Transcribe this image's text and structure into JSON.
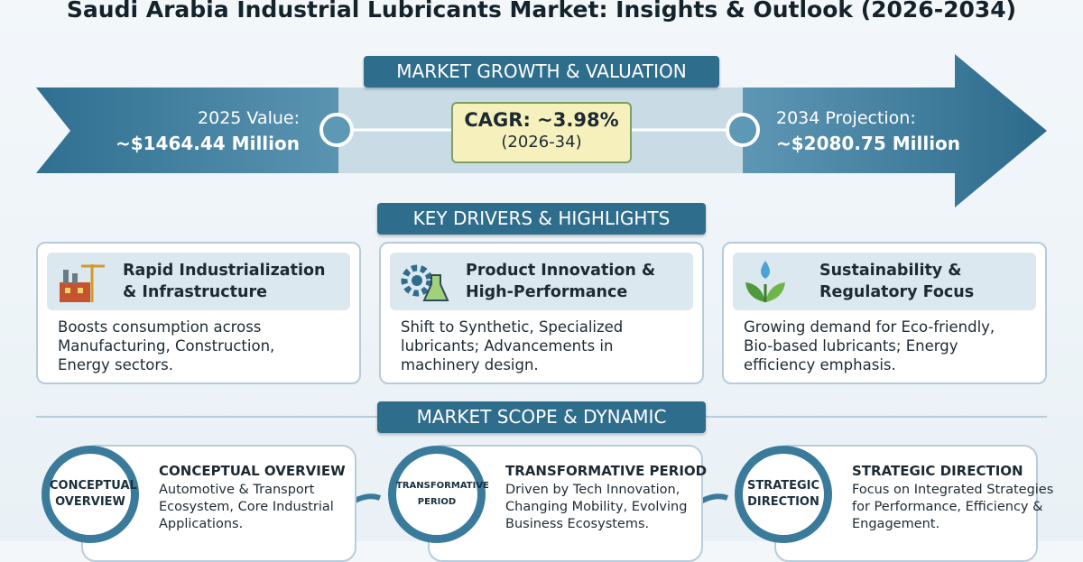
{
  "title": "Saudi Arabia Industrial Lubricants Market: Insights & Outlook (2026-2034)",
  "growth": {
    "heading": "MARKET GROWTH & VALUATION",
    "start_label": "2025 Value:",
    "start_value": "~$1464.44 Million",
    "cagr": "CAGR: ~3.98%",
    "cagr_period": "(2026-34)",
    "end_label": "2034 Projection:",
    "end_value": "~$2080.75 Million"
  },
  "drivers": {
    "heading": "KEY DRIVERS & HIGHLIGHTS",
    "cards": [
      {
        "title": [
          "Rapid Industrialization",
          "& Infrastructure"
        ],
        "body": [
          "Boosts consumption across",
          "Manufacturing, Construction,",
          "Energy sectors."
        ]
      },
      {
        "title": [
          "Product Innovation &",
          "High-Performance"
        ],
        "body": [
          "Shift to Synthetic, Specialized",
          "lubricants; Advancements in",
          "machinery design."
        ]
      },
      {
        "title": [
          "Sustainability &",
          "Regulatory Focus"
        ],
        "body": [
          "Growing demand for Eco-friendly,",
          "Bio-based lubricants; Energy",
          "efficiency emphasis."
        ]
      }
    ]
  },
  "scope": {
    "heading": "MARKET SCOPE & DYNAMIC",
    "items": [
      {
        "badge": [
          "CONCEPTUAL",
          "OVERVIEW"
        ],
        "title": "CONCEPTUAL OVERVIEW",
        "body": [
          "Automotive & Transport",
          "Ecosystem, Core Industrial",
          "Applications."
        ]
      },
      {
        "badge": [
          "TRANSFORMATIVE",
          "PERIOD"
        ],
        "title": "TRANSFORMATIVE PERIOD",
        "body": [
          "Driven by Tech Innovation,",
          "Changing Mobility, Evolving",
          "Business Ecosystems."
        ]
      },
      {
        "badge": [
          "STRATEGIC",
          "DIRECTION"
        ],
        "title": "STRATEGIC DIRECTION",
        "body": [
          "Focus on Integrated Strategies",
          "for Performance, Efficiency &",
          "Engagement."
        ]
      }
    ]
  }
}
